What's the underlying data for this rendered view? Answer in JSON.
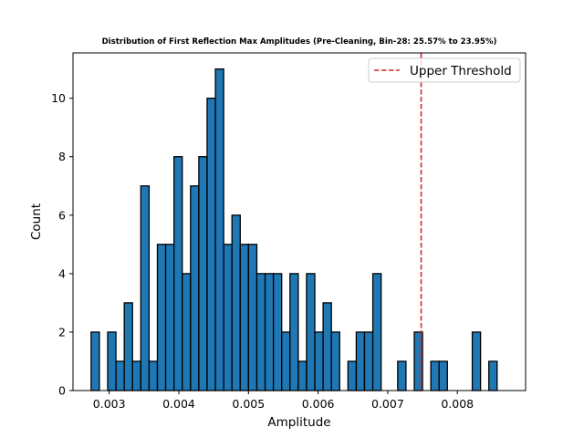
{
  "chart_data": {
    "type": "bar",
    "title": "Distribution of First Reflection Max Amplitudes (Pre-Cleaning, Bin-28: 25.57% to 23.95%)",
    "xlabel": "Amplitude",
    "ylabel": "Count",
    "xlim": [
      0.00248,
      0.00898
    ],
    "ylim": [
      0,
      11.55
    ],
    "x_ticks": [
      0.003,
      0.004,
      0.005,
      0.006,
      0.007,
      0.008
    ],
    "x_tick_labels": [
      "0.003",
      "0.004",
      "0.005",
      "0.006",
      "0.007",
      "0.008"
    ],
    "y_ticks": [
      0,
      2,
      4,
      6,
      8,
      10
    ],
    "y_tick_labels": [
      "0",
      "2",
      "4",
      "6",
      "8",
      "10"
    ],
    "bin_start": 0.00274,
    "bin_width": 0.000119,
    "counts": [
      2,
      0,
      2,
      1,
      3,
      1,
      7,
      1,
      5,
      5,
      8,
      4,
      7,
      8,
      10,
      11,
      5,
      6,
      5,
      5,
      4,
      4,
      4,
      2,
      4,
      1,
      4,
      2,
      3,
      2,
      0,
      1,
      2,
      2,
      4,
      0,
      0,
      1,
      0,
      2,
      0,
      1,
      1,
      0,
      0,
      0,
      2,
      0,
      1
    ],
    "bar_color": "#1f77b4",
    "edge_color": "#000000",
    "threshold": {
      "label": "Upper Threshold",
      "value": 0.00748,
      "color": "#d62728",
      "style": "dashed"
    },
    "legend_position": "top-right",
    "grid": false
  }
}
